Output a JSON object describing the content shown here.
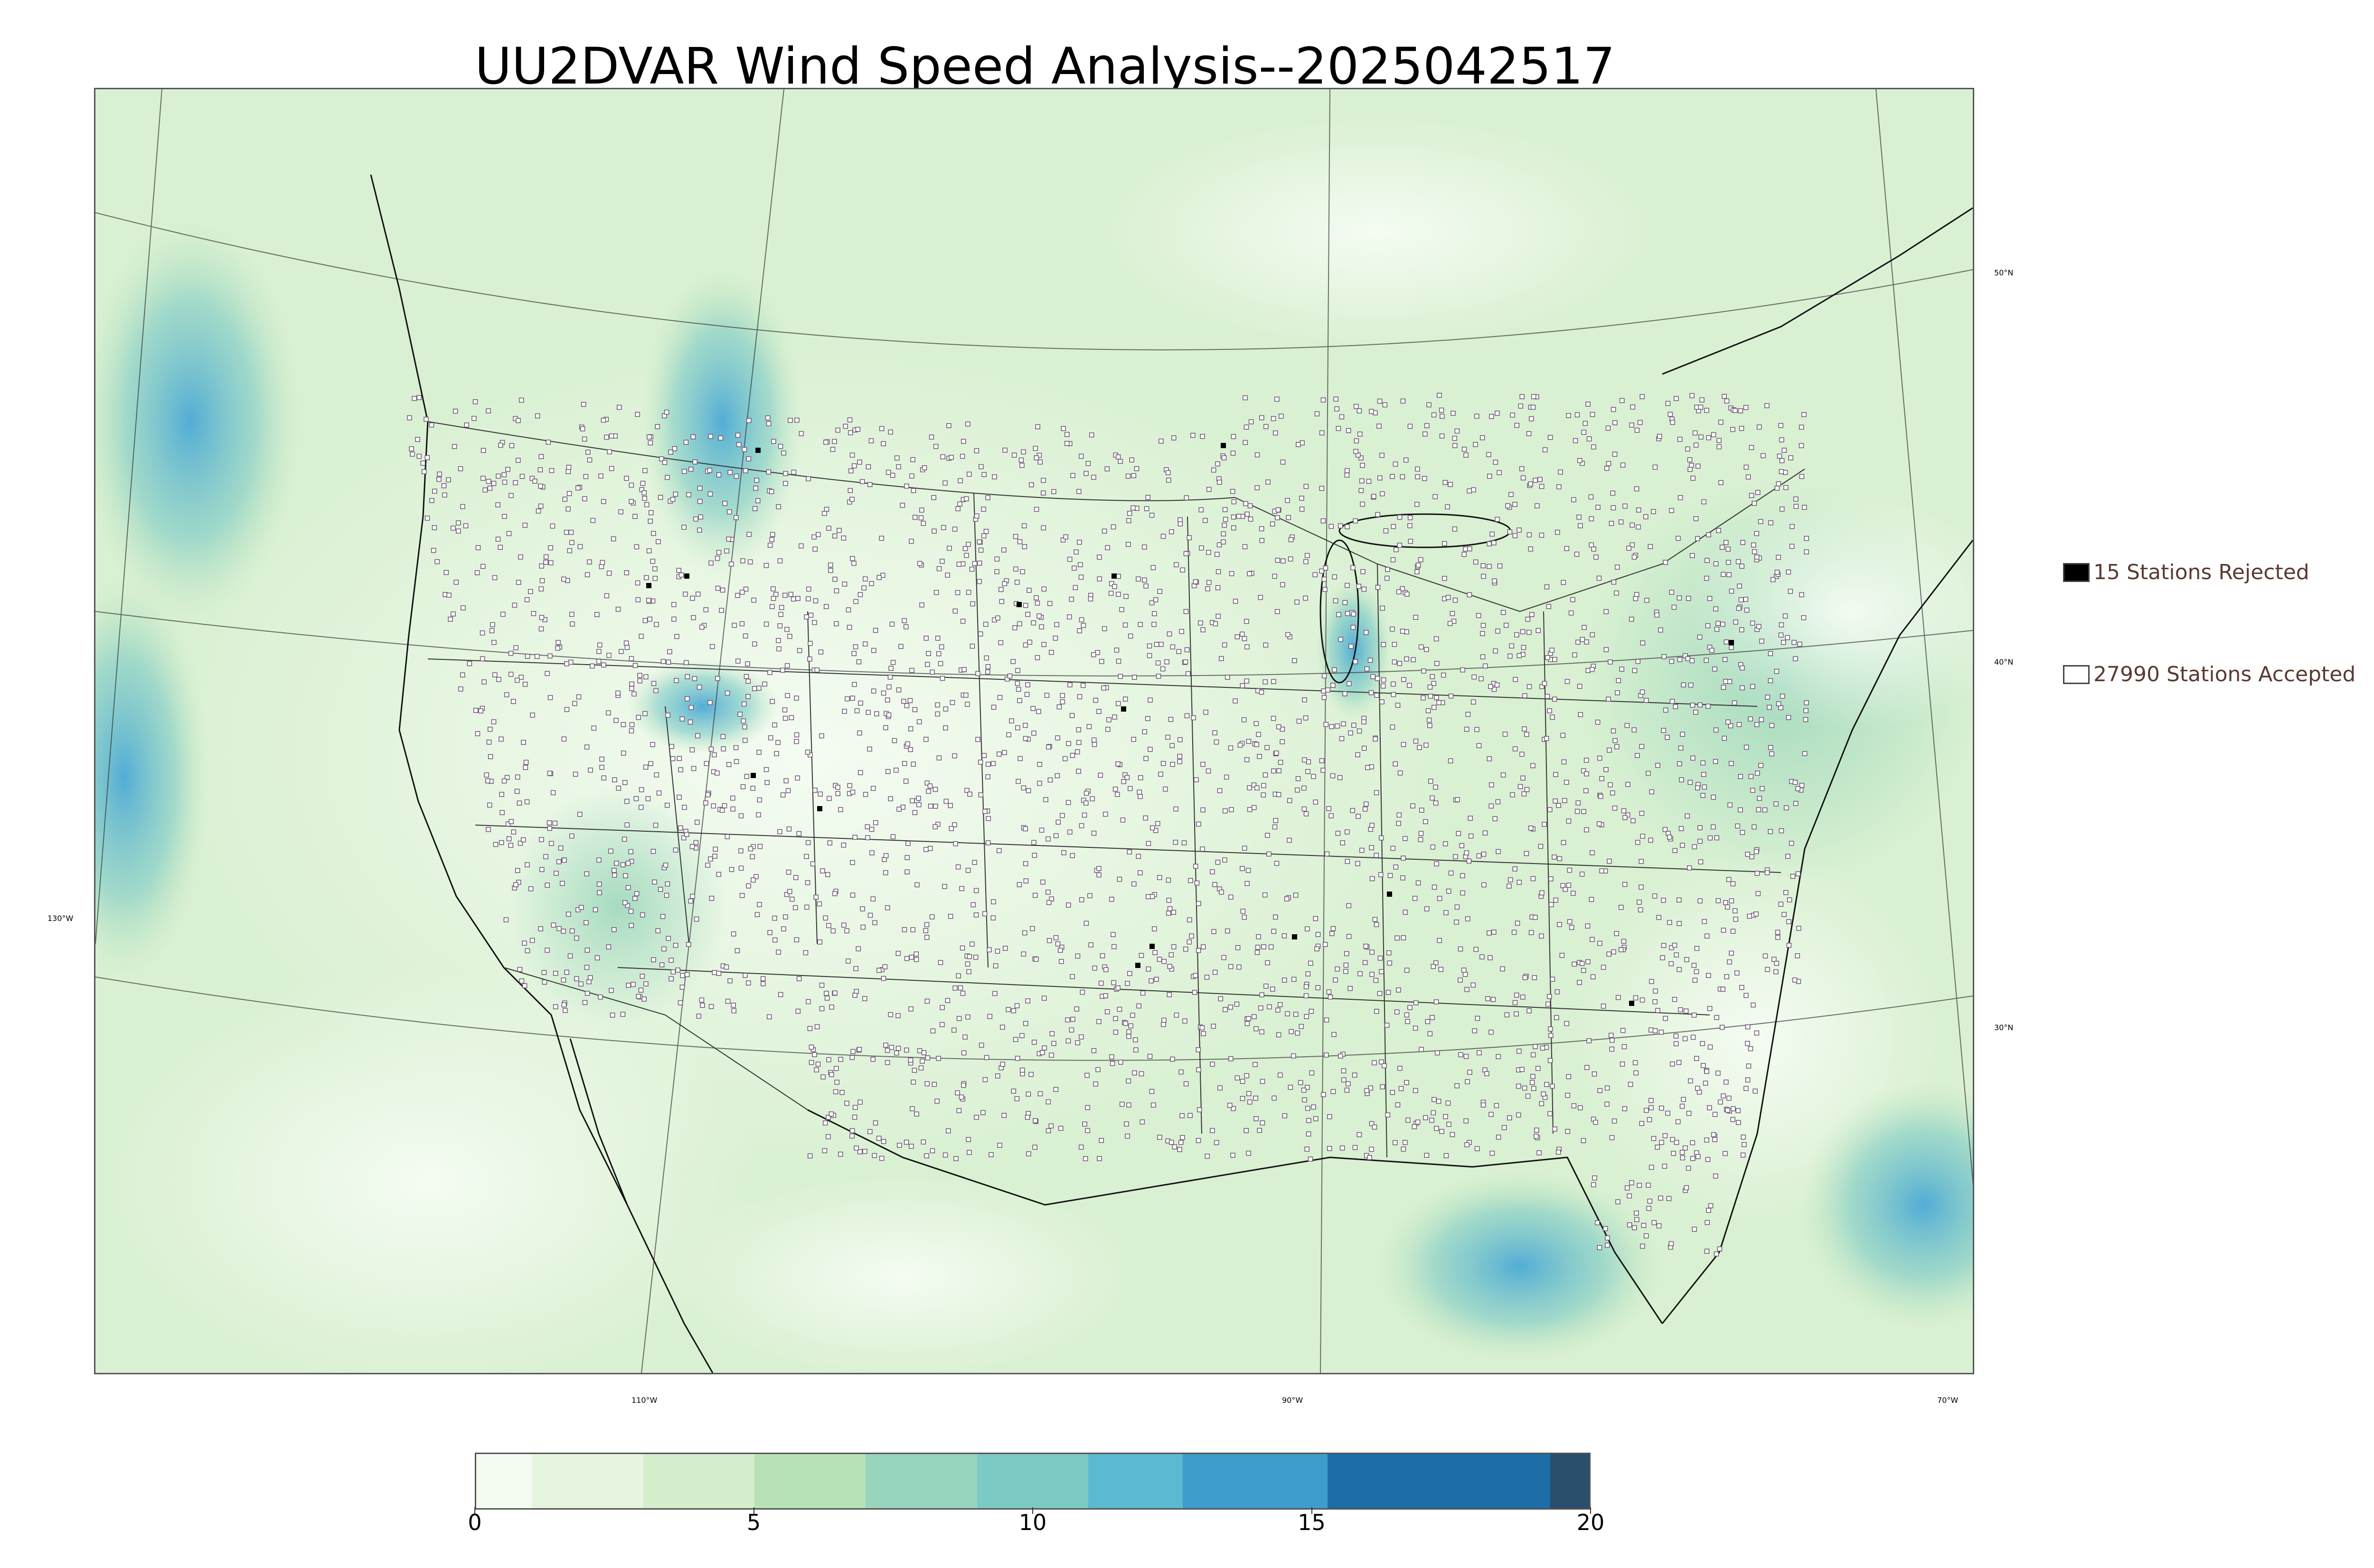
{
  "title": "UU2DVAR Wind Speed Analysis--2025042517",
  "map": {
    "lat_labels": [
      "50°N",
      "40°N",
      "30°N"
    ],
    "lon_labels": [
      "130°W",
      "110°W",
      "90°W",
      "70°W"
    ],
    "accepted_marker_color": "#ffffff",
    "rejected_marker_color": "#000000",
    "state_line_color": "#444444"
  },
  "legend": {
    "rejected": {
      "count": 15,
      "label": "15 Stations Rejected",
      "color": "#000000"
    },
    "accepted": {
      "count": 27990,
      "label": "27990 Stations Accepted",
      "color": "#ffffff"
    }
  },
  "colorbar": {
    "min": 0,
    "max": 20,
    "tick_labels": [
      "0",
      "5",
      "10",
      "15",
      "20"
    ],
    "tick_values": [
      0,
      5,
      10,
      15,
      20
    ],
    "segments": [
      {
        "from": 0,
        "to": 1,
        "color": "#f4fbf0"
      },
      {
        "from": 1,
        "to": 3,
        "color": "#e6f5e0"
      },
      {
        "from": 3,
        "to": 5,
        "color": "#d4eecc"
      },
      {
        "from": 5,
        "to": 7,
        "color": "#b7e2b8"
      },
      {
        "from": 7,
        "to": 9,
        "color": "#97d5bd"
      },
      {
        "from": 9,
        "to": 11,
        "color": "#7ccac4"
      },
      {
        "from": 11,
        "to": 12.7,
        "color": "#5cb9d2"
      },
      {
        "from": 12.7,
        "to": 15.3,
        "color": "#3e9dcc"
      },
      {
        "from": 15.3,
        "to": 19.3,
        "color": "#1d6ea8"
      },
      {
        "from": 19.3,
        "to": 20,
        "color": "#2a4e6c"
      }
    ]
  }
}
